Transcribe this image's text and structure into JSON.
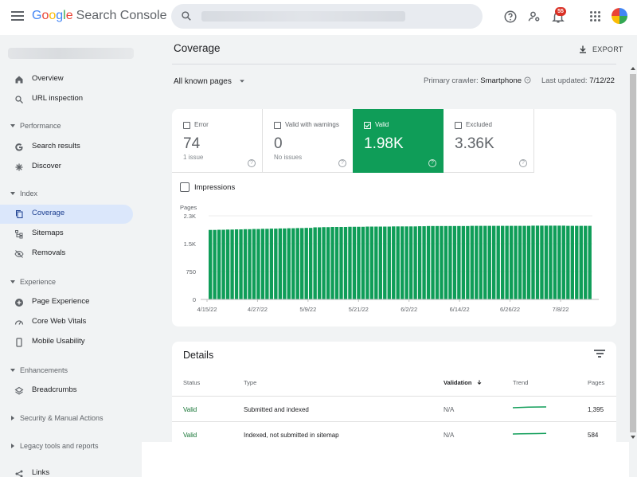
{
  "header": {
    "logo_parts": [
      "G",
      "o",
      "o",
      "g",
      "l",
      "e"
    ],
    "product": "Search Console",
    "search_placeholder": "",
    "notification_count": "55"
  },
  "sidebar": {
    "items": [
      {
        "label": "Overview",
        "icon": "home-icon"
      },
      {
        "label": "URL inspection",
        "icon": "search-icon"
      },
      {
        "label": "Search results",
        "icon": "google-g-icon"
      },
      {
        "label": "Discover",
        "icon": "asterisk-icon"
      },
      {
        "label": "Coverage",
        "icon": "file-copy-icon"
      },
      {
        "label": "Sitemaps",
        "icon": "sitemap-icon"
      },
      {
        "label": "Removals",
        "icon": "eye-off-icon"
      },
      {
        "label": "Page Experience",
        "icon": "circle-plus-icon"
      },
      {
        "label": "Core Web Vitals",
        "icon": "gauge-icon"
      },
      {
        "label": "Mobile Usability",
        "icon": "smartphone-icon"
      },
      {
        "label": "Breadcrumbs",
        "icon": "layers-icon"
      },
      {
        "label": "Links",
        "icon": "link-icon"
      }
    ],
    "sections": [
      "Performance",
      "Index",
      "Experience",
      "Enhancements",
      "Security & Manual Actions",
      "Legacy tools and reports"
    ]
  },
  "main": {
    "title": "Coverage",
    "export_label": "EXPORT",
    "filter_label": "All known pages",
    "crawler_label": "Primary crawler:",
    "crawler_value": "Smartphone",
    "updated_label": "Last updated:",
    "updated_value": "7/12/22",
    "tiles": [
      {
        "label": "Error",
        "value": "74",
        "sub": "1 issue"
      },
      {
        "label": "Valid with warnings",
        "value": "0",
        "sub": "No issues"
      },
      {
        "label": "Valid",
        "value": "1.98K",
        "sub": ""
      },
      {
        "label": "Excluded",
        "value": "3.36K",
        "sub": ""
      }
    ],
    "impressions_label": "Impressions"
  },
  "chart_data": {
    "type": "bar",
    "ylabel": "Pages",
    "ylim": [
      0,
      2250
    ],
    "yticks": [
      0,
      750,
      1500,
      2250
    ],
    "ytick_labels": [
      "0",
      "750",
      "1.5K",
      "2.3K"
    ],
    "xtick_labels": [
      "4/15/22",
      "4/27/22",
      "5/9/22",
      "5/21/22",
      "6/2/22",
      "6/14/22",
      "6/26/22",
      "7/8/22"
    ],
    "color": "#0f9d58",
    "values": [
      1870,
      1870,
      1875,
      1875,
      1880,
      1880,
      1885,
      1885,
      1890,
      1890,
      1895,
      1895,
      1900,
      1900,
      1905,
      1905,
      1910,
      1910,
      1915,
      1915,
      1920,
      1920,
      1925,
      1925,
      1940,
      1940,
      1945,
      1945,
      1950,
      1950,
      1950,
      1950,
      1955,
      1955,
      1955,
      1955,
      1960,
      1960,
      1960,
      1960,
      1960,
      1960,
      1965,
      1965,
      1965,
      1965,
      1965,
      1965,
      1970,
      1970,
      1975,
      1975,
      1975,
      1975,
      1975,
      1975,
      1975,
      1975,
      1975,
      1975,
      1980,
      1980,
      1980,
      1980,
      1980,
      1980,
      1980,
      1980,
      1980,
      1980,
      1980,
      1980,
      1980,
      1980,
      1985,
      1985,
      1985,
      1985,
      1985,
      1985,
      1985,
      1985,
      1980,
      1980,
      1980,
      1980,
      1980,
      1980
    ]
  },
  "details": {
    "title": "Details",
    "columns": [
      "Status",
      "Type",
      "Validation",
      "Trend",
      "Pages"
    ],
    "rows": [
      {
        "status": "Valid",
        "type": "Submitted and indexed",
        "validation": "N/A",
        "pages": "1,395"
      },
      {
        "status": "Valid",
        "type": "Indexed, not submitted in sitemap",
        "validation": "N/A",
        "pages": "584"
      }
    ]
  }
}
